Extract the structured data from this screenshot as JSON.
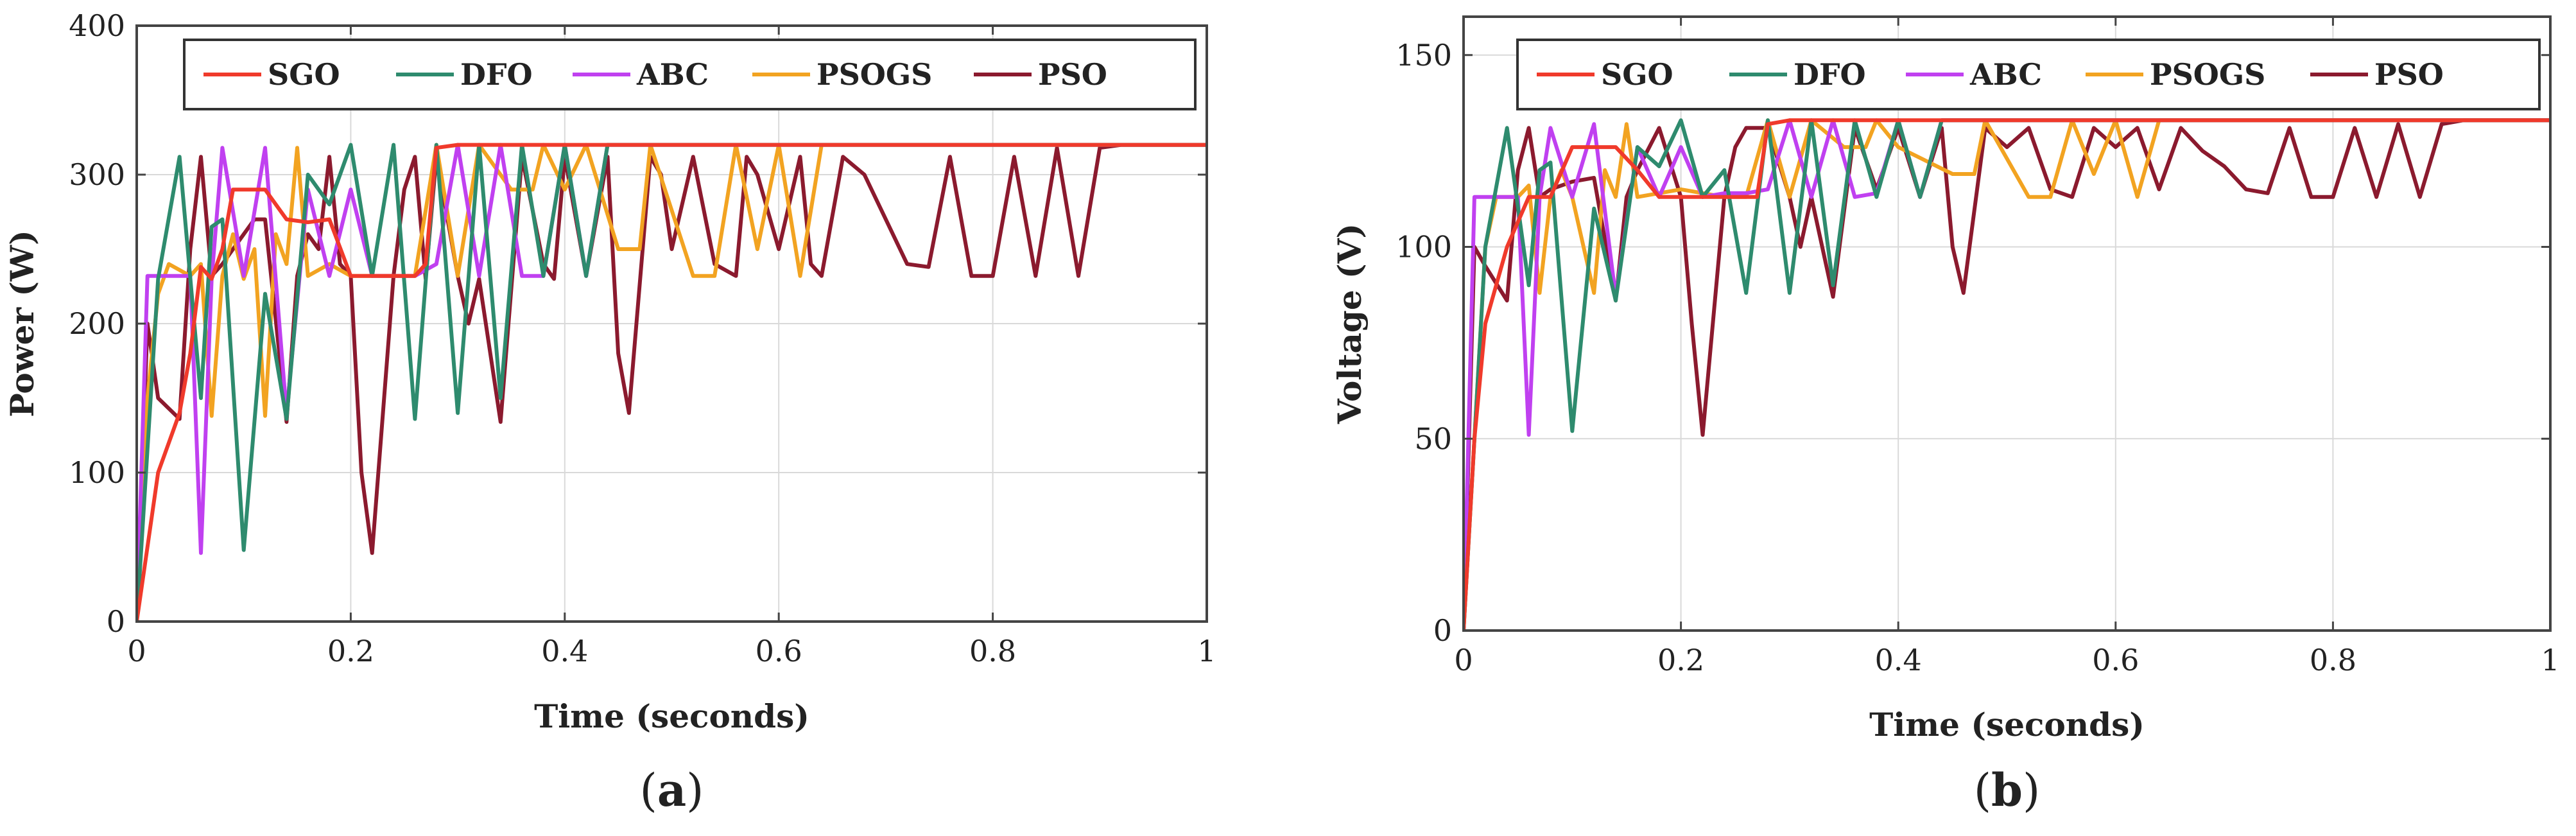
{
  "chart_data": [
    {
      "id": "a",
      "type": "line",
      "caption": "a",
      "xlabel": "Time (seconds)",
      "ylabel": "Power (W)",
      "xlim": [
        0,
        1
      ],
      "ylim": [
        0,
        400
      ],
      "xticks": [
        0,
        0.2,
        0.4,
        0.6,
        0.8,
        1
      ],
      "xtick_labels": [
        "0",
        "0.2",
        "0.4",
        "0.6",
        "0.8",
        "1"
      ],
      "yticks": [
        0,
        100,
        200,
        300,
        400
      ],
      "ytick_labels": [
        "0",
        "100",
        "200",
        "300",
        "400"
      ],
      "grid": true,
      "legend_position": "top",
      "series": [
        {
          "name": "SGO",
          "color": "#f03a2b",
          "x": [
            0,
            0.01,
            0.02,
            0.03,
            0.04,
            0.05,
            0.06,
            0.07,
            0.08,
            0.09,
            0.1,
            0.12,
            0.14,
            0.16,
            0.18,
            0.2,
            0.22,
            0.24,
            0.26,
            0.27,
            0.28,
            0.3,
            1
          ],
          "y": [
            0,
            50,
            100,
            120,
            140,
            180,
            238,
            230,
            250,
            290,
            290,
            290,
            270,
            268,
            270,
            232,
            232,
            232,
            232,
            240,
            318,
            320,
            320
          ]
        },
        {
          "name": "DFO",
          "color": "#2e8b6e",
          "x": [
            0,
            0.02,
            0.04,
            0.06,
            0.07,
            0.08,
            0.1,
            0.12,
            0.14,
            0.16,
            0.18,
            0.2,
            0.22,
            0.24,
            0.26,
            0.28,
            0.3,
            0.32,
            0.34,
            0.36,
            0.38,
            0.4,
            0.42,
            0.44,
            0.46,
            1
          ],
          "y": [
            0,
            230,
            312,
            150,
            265,
            270,
            48,
            220,
            136,
            300,
            280,
            320,
            232,
            320,
            136,
            320,
            140,
            320,
            150,
            320,
            232,
            320,
            232,
            320,
            320,
            320
          ]
        },
        {
          "name": "ABC",
          "color": "#c040f0",
          "x": [
            0,
            0.01,
            0.05,
            0.06,
            0.07,
            0.08,
            0.1,
            0.12,
            0.14,
            0.16,
            0.18,
            0.2,
            0.22,
            0.24,
            0.26,
            0.28,
            0.3,
            0.32,
            0.34,
            0.36,
            0.38,
            0.4,
            0.42,
            0.44,
            0.46,
            1
          ],
          "y": [
            0,
            232,
            232,
            46,
            230,
            318,
            232,
            318,
            140,
            290,
            232,
            290,
            232,
            232,
            232,
            240,
            320,
            232,
            320,
            232,
            232,
            320,
            232,
            320,
            320,
            320
          ]
        },
        {
          "name": "PSOGS",
          "color": "#f2a321",
          "x": [
            0,
            0.01,
            0.02,
            0.03,
            0.05,
            0.06,
            0.07,
            0.08,
            0.09,
            0.1,
            0.11,
            0.12,
            0.13,
            0.14,
            0.15,
            0.16,
            0.18,
            0.2,
            0.22,
            0.24,
            0.26,
            0.28,
            0.3,
            0.32,
            0.35,
            0.37,
            0.38,
            0.4,
            0.42,
            0.45,
            0.47,
            0.48,
            0.52,
            0.54,
            0.56,
            0.58,
            0.6,
            0.62,
            0.64,
            0.66,
            1
          ],
          "y": [
            0,
            150,
            220,
            240,
            232,
            240,
            138,
            232,
            260,
            230,
            250,
            138,
            260,
            240,
            318,
            232,
            240,
            232,
            232,
            232,
            232,
            320,
            232,
            320,
            290,
            290,
            320,
            290,
            320,
            250,
            250,
            320,
            232,
            232,
            320,
            250,
            320,
            232,
            320,
            320,
            320
          ]
        },
        {
          "name": "PSO",
          "color": "#8b1a2e",
          "x": [
            0,
            0.01,
            0.02,
            0.04,
            0.05,
            0.06,
            0.07,
            0.08,
            0.09,
            0.1,
            0.11,
            0.12,
            0.14,
            0.15,
            0.16,
            0.17,
            0.18,
            0.19,
            0.2,
            0.21,
            0.22,
            0.24,
            0.25,
            0.26,
            0.27,
            0.28,
            0.3,
            0.31,
            0.32,
            0.34,
            0.36,
            0.38,
            0.39,
            0.4,
            0.42,
            0.44,
            0.45,
            0.46,
            0.48,
            0.49,
            0.5,
            0.52,
            0.54,
            0.56,
            0.57,
            0.58,
            0.6,
            0.62,
            0.63,
            0.64,
            0.66,
            0.68,
            0.7,
            0.72,
            0.74,
            0.76,
            0.78,
            0.8,
            0.82,
            0.84,
            0.86,
            0.88,
            0.9,
            0.92,
            1
          ],
          "y": [
            0,
            200,
            150,
            136,
            250,
            312,
            232,
            240,
            250,
            260,
            270,
            270,
            134,
            232,
            260,
            250,
            312,
            240,
            232,
            100,
            46,
            232,
            290,
            312,
            230,
            312,
            232,
            200,
            230,
            134,
            312,
            240,
            230,
            312,
            232,
            312,
            180,
            140,
            312,
            300,
            250,
            312,
            240,
            232,
            312,
            300,
            250,
            312,
            240,
            232,
            312,
            300,
            270,
            240,
            238,
            312,
            232,
            232,
            312,
            232,
            318,
            232,
            318,
            320,
            320
          ]
        }
      ]
    },
    {
      "id": "b",
      "type": "line",
      "caption": "b",
      "xlabel": "Time (seconds)",
      "ylabel": "Voltage (V)",
      "xlim": [
        0,
        1
      ],
      "ylim": [
        0,
        160
      ],
      "xticks": [
        0,
        0.2,
        0.4,
        0.6,
        0.8,
        1
      ],
      "xtick_labels": [
        "0",
        "0.2",
        "0.4",
        "0.6",
        "0.8",
        "1"
      ],
      "yticks": [
        0,
        50,
        100,
        150
      ],
      "ytick_labels": [
        "0",
        "50",
        "100",
        "150"
      ],
      "grid": true,
      "legend_position": "top",
      "series": [
        {
          "name": "SGO",
          "color": "#f03a2b",
          "x": [
            0,
            0.01,
            0.02,
            0.03,
            0.04,
            0.06,
            0.08,
            0.1,
            0.12,
            0.14,
            0.16,
            0.18,
            0.2,
            0.24,
            0.27,
            0.28,
            0.3,
            1
          ],
          "y": [
            0,
            50,
            80,
            90,
            100,
            113,
            113,
            126,
            126,
            126,
            120,
            113,
            113,
            113,
            113,
            132,
            133,
            133
          ]
        },
        {
          "name": "DFO",
          "color": "#2e8b6e",
          "x": [
            0,
            0.02,
            0.04,
            0.06,
            0.07,
            0.08,
            0.1,
            0.12,
            0.14,
            0.16,
            0.18,
            0.2,
            0.22,
            0.24,
            0.26,
            0.28,
            0.3,
            0.32,
            0.34,
            0.36,
            0.38,
            0.4,
            0.42,
            0.44,
            0.46,
            1
          ],
          "y": [
            0,
            100,
            131,
            90,
            120,
            122,
            52,
            110,
            86,
            126,
            121,
            133,
            113,
            120,
            88,
            133,
            88,
            133,
            90,
            133,
            113,
            133,
            113,
            133,
            133,
            133
          ]
        },
        {
          "name": "ABC",
          "color": "#c040f0",
          "x": [
            0,
            0.01,
            0.05,
            0.06,
            0.07,
            0.08,
            0.1,
            0.12,
            0.14,
            0.16,
            0.18,
            0.2,
            0.22,
            0.24,
            0.26,
            0.28,
            0.3,
            0.32,
            0.34,
            0.36,
            0.38,
            0.4,
            0.42,
            0.44,
            0.46,
            1
          ],
          "y": [
            0,
            113,
            113,
            51,
            113,
            131,
            113,
            132,
            87,
            126,
            113,
            126,
            113,
            114,
            114,
            115,
            133,
            113,
            133,
            113,
            114,
            133,
            113,
            133,
            133,
            133
          ]
        },
        {
          "name": "PSOGS",
          "color": "#f2a321",
          "x": [
            0,
            0.02,
            0.03,
            0.05,
            0.06,
            0.07,
            0.08,
            0.09,
            0.1,
            0.12,
            0.13,
            0.14,
            0.15,
            0.16,
            0.2,
            0.24,
            0.26,
            0.28,
            0.3,
            0.32,
            0.35,
            0.37,
            0.38,
            0.4,
            0.45,
            0.47,
            0.48,
            0.52,
            0.54,
            0.56,
            0.58,
            0.6,
            0.62,
            0.64,
            0.66,
            1
          ],
          "y": [
            0,
            100,
            113,
            113,
            116,
            88,
            113,
            120,
            113,
            88,
            120,
            113,
            132,
            113,
            115,
            113,
            113,
            133,
            113,
            133,
            126,
            126,
            133,
            126,
            119,
            119,
            133,
            113,
            113,
            133,
            119,
            133,
            113,
            133,
            133,
            133
          ]
        },
        {
          "name": "PSO",
          "color": "#8b1a2e",
          "x": [
            0,
            0.01,
            0.02,
            0.04,
            0.05,
            0.06,
            0.07,
            0.08,
            0.1,
            0.12,
            0.14,
            0.15,
            0.16,
            0.18,
            0.2,
            0.21,
            0.22,
            0.24,
            0.25,
            0.26,
            0.28,
            0.3,
            0.31,
            0.32,
            0.34,
            0.36,
            0.38,
            0.4,
            0.42,
            0.44,
            0.45,
            0.46,
            0.48,
            0.5,
            0.52,
            0.54,
            0.56,
            0.58,
            0.6,
            0.62,
            0.64,
            0.66,
            0.68,
            0.7,
            0.72,
            0.74,
            0.76,
            0.78,
            0.8,
            0.82,
            0.84,
            0.86,
            0.88,
            0.9,
            0.92,
            1
          ],
          "y": [
            0,
            100,
            95,
            86,
            120,
            131,
            113,
            115,
            117,
            118,
            86,
            113,
            120,
            131,
            113,
            80,
            51,
            113,
            126,
            131,
            131,
            113,
            100,
            113,
            87,
            131,
            115,
            131,
            113,
            131,
            100,
            88,
            131,
            126,
            131,
            115,
            113,
            131,
            126,
            131,
            115,
            131,
            125,
            121,
            115,
            114,
            131,
            113,
            113,
            131,
            113,
            132,
            113,
            132,
            133,
            133
          ]
        }
      ]
    }
  ]
}
